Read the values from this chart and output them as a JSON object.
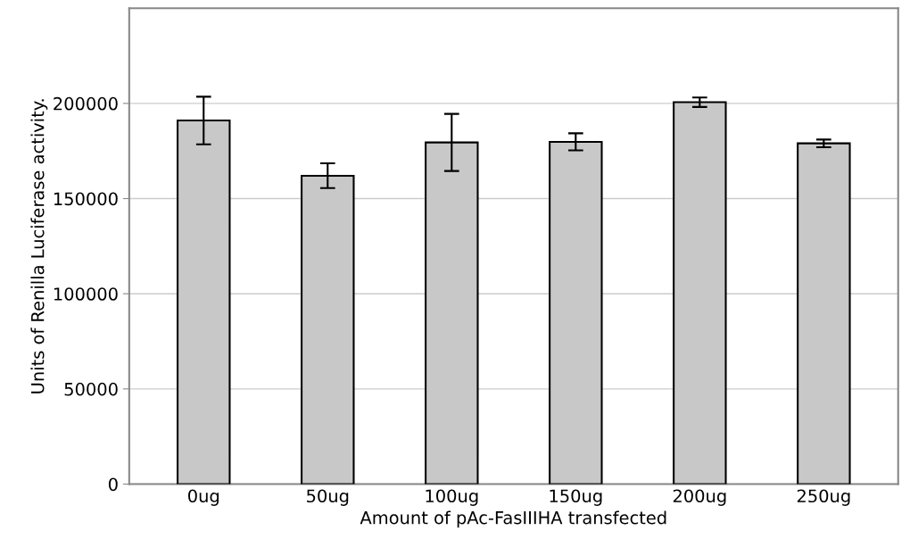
{
  "chart_data": {
    "type": "bar",
    "xlabel": "Amount of pAc-FasIIIHA transfected",
    "ylabel": "Units of Renilla Luciferase activity.",
    "categories": [
      "0ug",
      "50ug",
      "100ug",
      "150ug",
      "200ug",
      "250ug"
    ],
    "values": [
      191000,
      162000,
      179500,
      179800,
      200600,
      179000
    ],
    "errors": [
      12500,
      6500,
      15000,
      4500,
      2500,
      2000
    ],
    "color": "#c8c8c8",
    "ylim": [
      0,
      250000
    ],
    "yticks": [
      0,
      50000,
      100000,
      150000,
      200000
    ],
    "grid": "y"
  }
}
